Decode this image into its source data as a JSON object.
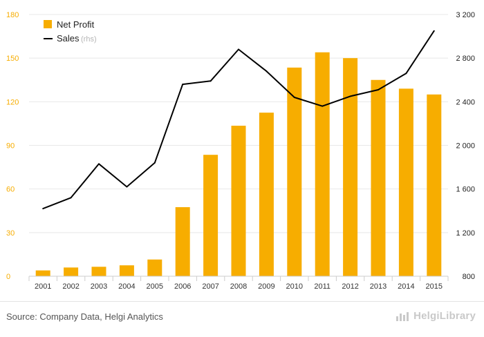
{
  "chart_data": {
    "type": "bar+line",
    "categories": [
      "2001",
      "2002",
      "2003",
      "2004",
      "2005",
      "2006",
      "2007",
      "2008",
      "2009",
      "2010",
      "2011",
      "2012",
      "2013",
      "2014",
      "2015"
    ],
    "series": [
      {
        "name": "Net Profit",
        "type": "bar",
        "axis": "left",
        "values": [
          4,
          6,
          6.5,
          7.5,
          11.5,
          47.5,
          83.5,
          103.5,
          112.5,
          143.5,
          154,
          150,
          135,
          129,
          125
        ]
      },
      {
        "name": "Sales",
        "type": "line",
        "axis": "right",
        "values": [
          1420,
          1520,
          1830,
          1620,
          1840,
          2560,
          2590,
          2880,
          2680,
          2440,
          2360,
          2450,
          2510,
          2660,
          3050
        ]
      }
    ],
    "sales_legend_suffix": "(rhs)",
    "left_axis": {
      "ylim": [
        0,
        180
      ],
      "ticks": [
        "0",
        "30",
        "60",
        "90",
        "120",
        "150",
        "180"
      ]
    },
    "right_axis": {
      "ylim": [
        800,
        3200
      ],
      "ticks": [
        "800",
        "1 200",
        "1 600",
        "2 000",
        "2 400",
        "2 800",
        "3 200"
      ]
    },
    "grid": true,
    "legend_position": "top-left",
    "colors": {
      "bar": "#f7ad00",
      "line": "#000000",
      "left_tick": "#f7ad00",
      "right_tick": "#222222",
      "grid": "#e8e8e8"
    }
  },
  "footer": {
    "source": "Source: Company Data, Helgi Analytics",
    "brand": "HelgiLibrary"
  }
}
